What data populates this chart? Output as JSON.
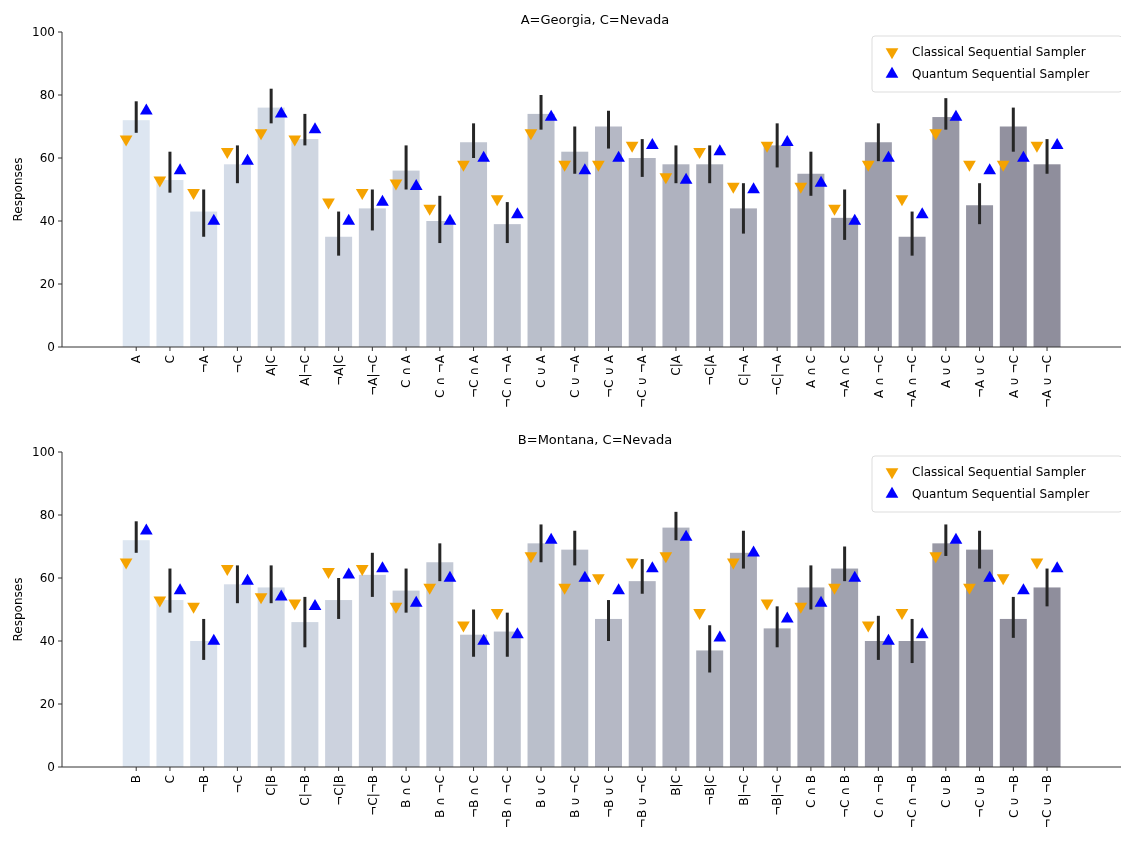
{
  "chart_data": [
    {
      "type": "bar",
      "title": "A=Georgia, C=Nevada",
      "ylabel": "Responses",
      "ylim": [
        0,
        100
      ],
      "yticks": [
        0,
        20,
        40,
        60,
        80,
        100
      ],
      "grid": false,
      "legend": "top right",
      "categories": [
        "A",
        "C",
        "¬A",
        "¬C",
        "A|C",
        "A|¬C",
        "¬A|C",
        "¬A|¬C",
        "C ∩ A",
        "C ∩ ¬A",
        "¬C ∩ A",
        "¬C ∩ ¬A",
        "C ∪ A",
        "C ∪ ¬A",
        "¬C ∪ A",
        "¬C ∪ ¬A",
        "C|A",
        "¬C|A",
        "C|¬A",
        "¬C|¬A",
        "A ∩ C",
        "¬A ∩ C",
        "A ∩ ¬C",
        "¬A ∩ ¬C",
        "A ∪ C",
        "¬A ∪ C",
        "A ∪ ¬C",
        "¬A ∪ ¬C"
      ],
      "series": [
        {
          "colors": [
            "#dde6f1",
            "#dae3ee",
            "#d7dfeb",
            "#d4dce8",
            "#d1d9e4",
            "#cfd6e1",
            "#ccd2de",
            "#c9cfdb",
            "#c6ccd8",
            "#c3c9d5",
            "#c0c5d1",
            "#bdc2ce",
            "#babfcb",
            "#b7bcc8",
            "#b5b8c5",
            "#b2b5c2",
            "#afb2bf",
            "#acafbb",
            "#a9abb8",
            "#a6a8b5",
            "#a3a5b2",
            "#a0a2af",
            "#9d9eac",
            "#9a9ba9",
            "#9898a5",
            "#9595a2",
            "#92919f",
            "#8f8e9c"
          ],
          "values": [
            72,
            53,
            43,
            58,
            76,
            66,
            35,
            44,
            56,
            40,
            65,
            39,
            74,
            62,
            70,
            60,
            58,
            58,
            44,
            64,
            55,
            41,
            65,
            35,
            73,
            45,
            70,
            58
          ],
          "errors": [
            [
              68,
              78
            ],
            [
              49,
              62
            ],
            [
              35,
              50
            ],
            [
              52,
              64
            ],
            [
              71,
              82
            ],
            [
              64,
              74
            ],
            [
              29,
              43
            ],
            [
              37,
              50
            ],
            [
              50,
              64
            ],
            [
              33,
              48
            ],
            [
              60,
              71
            ],
            [
              33,
              46
            ],
            [
              69,
              80
            ],
            [
              55,
              70
            ],
            [
              63,
              75
            ],
            [
              54,
              66
            ],
            [
              52,
              64
            ],
            [
              52,
              64
            ],
            [
              36,
              52
            ],
            [
              57,
              71
            ],
            [
              48,
              62
            ],
            [
              34,
              50
            ],
            [
              59,
              71
            ],
            [
              29,
              43
            ],
            [
              69,
              79
            ],
            [
              39,
              52
            ],
            [
              62,
              76
            ],
            [
              55,
              66
            ]
          ]
        },
        {
          "type": "scatter",
          "name": "Classical Sequential Sampler",
          "color": "#f5a300",
          "marker": "triangle",
          "values": [
            66,
            53,
            49,
            62,
            68,
            66,
            46,
            49,
            52,
            44,
            58,
            47,
            68,
            58,
            58,
            64,
            54,
            62,
            51,
            64,
            51,
            44,
            58,
            47,
            68,
            58,
            58,
            64
          ]
        },
        {
          "type": "scatter",
          "name": "Quantum Sequential Sampler",
          "color": "#0000ff",
          "marker": "triangle",
          "values": [
            75,
            56,
            40,
            59,
            74,
            69,
            40,
            46,
            51,
            40,
            60,
            42,
            73,
            56,
            60,
            64,
            53,
            62,
            50,
            65,
            52,
            40,
            60,
            42,
            73,
            56,
            60,
            64
          ]
        }
      ]
    },
    {
      "type": "bar",
      "title": "B=Montana, C=Nevada",
      "ylabel": "Responses",
      "ylim": [
        0,
        100
      ],
      "yticks": [
        0,
        20,
        40,
        60,
        80,
        100
      ],
      "grid": false,
      "legend": "top right",
      "categories": [
        "B",
        "C",
        "¬B",
        "¬C",
        "C|B",
        "C|¬B",
        "¬C|B",
        "¬C|¬B",
        "B ∩ C",
        "B ∩ ¬C",
        "¬B ∩ C",
        "¬B ∩ ¬C",
        "B ∪ C",
        "B ∪ ¬C",
        "¬B ∪ C",
        "¬B ∪ ¬C",
        "B|C",
        "¬B|C",
        "B|¬C",
        "¬B|¬C",
        "C ∩ B",
        "¬C ∩ B",
        "C ∩ ¬B",
        "¬C ∩ ¬B",
        "C ∪ B",
        "¬C ∪ B",
        "C ∪ ¬B",
        "¬C ∪ ¬B"
      ],
      "series": [
        {
          "colors": [
            "#dde6f1",
            "#dae3ee",
            "#d7dfeb",
            "#d4dce8",
            "#d1d9e4",
            "#cfd6e1",
            "#ccd2de",
            "#c9cfdb",
            "#c6ccd8",
            "#c3c9d5",
            "#c0c5d1",
            "#bdc2ce",
            "#babfcb",
            "#b7bcc8",
            "#b5b8c5",
            "#b2b5c2",
            "#afb2bf",
            "#acafbb",
            "#a9abb8",
            "#a6a8b5",
            "#a3a5b2",
            "#a0a2af",
            "#9d9eac",
            "#9a9ba9",
            "#9898a5",
            "#9595a2",
            "#92919f",
            "#8f8e9c"
          ],
          "values": [
            72,
            53,
            40,
            58,
            57,
            46,
            53,
            61,
            56,
            65,
            42,
            43,
            71,
            69,
            47,
            59,
            76,
            37,
            68,
            44,
            57,
            63,
            40,
            40,
            71,
            69,
            47,
            57
          ],
          "errors": [
            [
              68,
              78
            ],
            [
              49,
              63
            ],
            [
              34,
              47
            ],
            [
              52,
              64
            ],
            [
              52,
              64
            ],
            [
              38,
              54
            ],
            [
              47,
              60
            ],
            [
              54,
              68
            ],
            [
              49,
              63
            ],
            [
              59,
              71
            ],
            [
              35,
              50
            ],
            [
              35,
              49
            ],
            [
              65,
              77
            ],
            [
              64,
              75
            ],
            [
              40,
              53
            ],
            [
              55,
              66
            ],
            [
              72,
              81
            ],
            [
              30,
              45
            ],
            [
              63,
              75
            ],
            [
              38,
              51
            ],
            [
              50,
              64
            ],
            [
              59,
              70
            ],
            [
              34,
              48
            ],
            [
              33,
              47
            ],
            [
              67,
              77
            ],
            [
              63,
              75
            ],
            [
              41,
              54
            ],
            [
              51,
              63
            ]
          ]
        },
        {
          "type": "scatter",
          "name": "Classical Sequential Sampler",
          "color": "#f5a300",
          "marker": "triangle",
          "values": [
            65,
            53,
            51,
            63,
            54,
            52,
            62,
            63,
            51,
            57,
            45,
            49,
            67,
            57,
            60,
            65,
            67,
            49,
            65,
            52,
            51,
            57,
            45,
            49,
            67,
            57,
            60,
            65
          ]
        },
        {
          "type": "scatter",
          "name": "Quantum Sequential Sampler",
          "color": "#0000ff",
          "marker": "triangle",
          "values": [
            75,
            56,
            40,
            59,
            54,
            51,
            61,
            63,
            52,
            60,
            40,
            42,
            72,
            60,
            56,
            63,
            73,
            41,
            68,
            47,
            52,
            60,
            40,
            42,
            72,
            60,
            56,
            63
          ]
        }
      ]
    }
  ]
}
